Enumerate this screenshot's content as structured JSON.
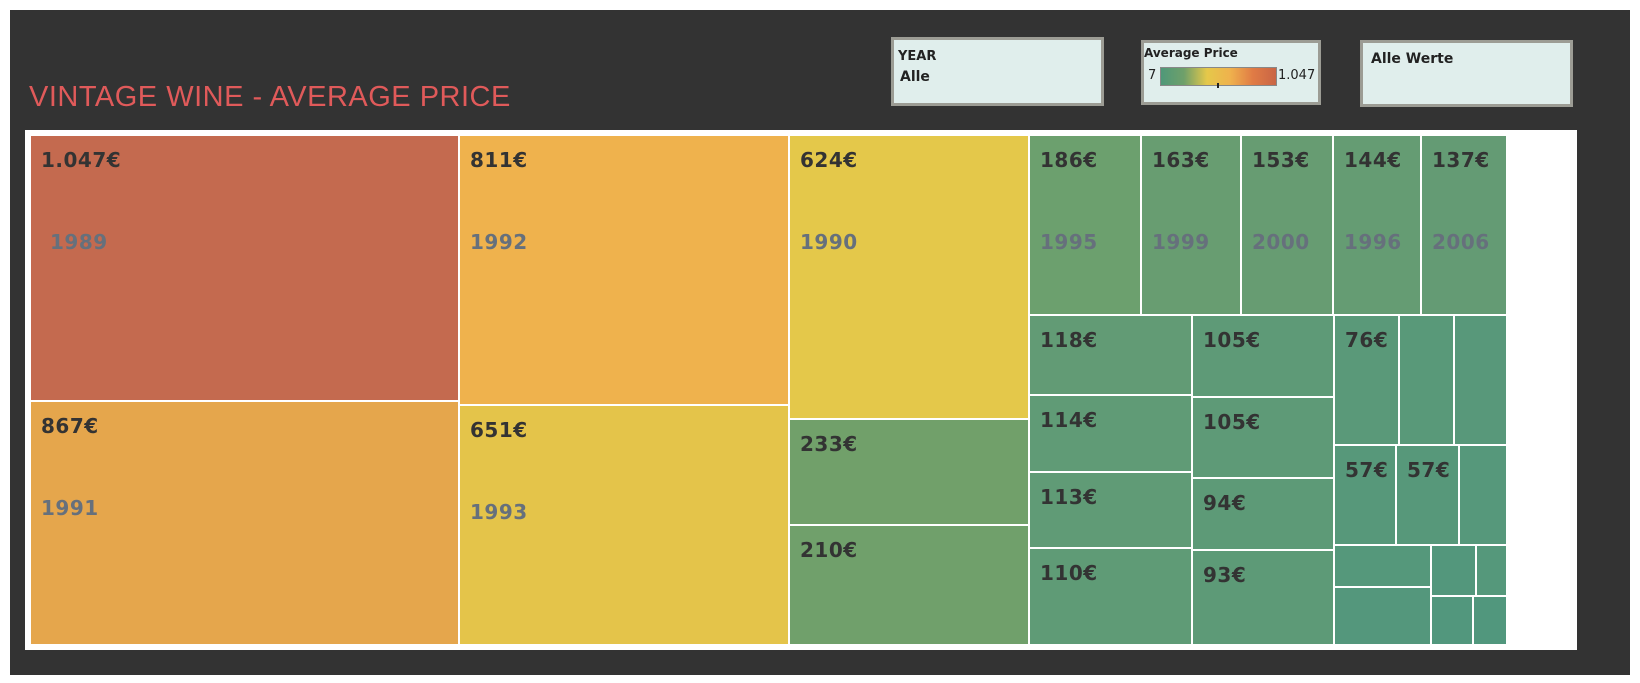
{
  "dashboard": {
    "title": "VINTAGE WINE - AVERAGE PRICE"
  },
  "filters": {
    "year": {
      "label": "YEAR",
      "value": "Alle"
    },
    "legend": {
      "label": "Average Price",
      "min": "7",
      "max": "1.047"
    },
    "values": {
      "label": "Alle Werte"
    }
  },
  "chart_data": {
    "type": "treemap",
    "measure": "Average Price",
    "color_scale": {
      "min": 7,
      "max": 1047,
      "colors": [
        "#4f9879",
        "#e5c84a",
        "#c96545"
      ]
    },
    "cells": [
      {
        "price": "1.047€",
        "year": "1989",
        "value": 1047,
        "color": "#c46a4f"
      },
      {
        "price": "867€",
        "year": "1991",
        "value": 867,
        "color": "#e5a64c"
      },
      {
        "price": "811€",
        "year": "1992",
        "value": 811,
        "color": "#efb24d"
      },
      {
        "price": "651€",
        "year": "1993",
        "value": 651,
        "color": "#e4c44a"
      },
      {
        "price": "624€",
        "year": "1990",
        "value": 624,
        "color": "#e4c84a"
      },
      {
        "price": "233€",
        "year": "",
        "value": 233,
        "color": "#71a06a"
      },
      {
        "price": "210€",
        "year": "",
        "value": 210,
        "color": "#70a06b"
      },
      {
        "price": "186€",
        "year": "1995",
        "value": 186,
        "color": "#6ca06e"
      },
      {
        "price": "163€",
        "year": "1999",
        "value": 163,
        "color": "#689d71"
      },
      {
        "price": "153€",
        "year": "2000",
        "value": 153,
        "color": "#679c72"
      },
      {
        "price": "144€",
        "year": "1996",
        "value": 144,
        "color": "#659c73"
      },
      {
        "price": "137€",
        "year": "2006",
        "value": 137,
        "color": "#649b74"
      },
      {
        "price": "118€",
        "year": "",
        "value": 118,
        "color": "#629b75"
      },
      {
        "price": "105€",
        "year": "",
        "value": 105,
        "color": "#5e9a77"
      },
      {
        "price": "114€",
        "year": "",
        "value": 114,
        "color": "#609b76"
      },
      {
        "price": "105€",
        "year": "",
        "value": 105,
        "color": "#5e9a77"
      },
      {
        "price": "113€",
        "year": "",
        "value": 113,
        "color": "#609b76"
      },
      {
        "price": "94€",
        "year": "",
        "value": 94,
        "color": "#5d9a77"
      },
      {
        "price": "110€",
        "year": "",
        "value": 110,
        "color": "#5f9b76"
      },
      {
        "price": "93€",
        "year": "",
        "value": 93,
        "color": "#5d9a77"
      },
      {
        "price": "76€",
        "year": "",
        "value": 76,
        "color": "#5a9979"
      },
      {
        "price": "",
        "year": "",
        "value": null,
        "color": "#599979"
      },
      {
        "price": "",
        "year": "",
        "value": null,
        "color": "#58987a"
      },
      {
        "price": "57€",
        "year": "",
        "value": 57,
        "color": "#57987a"
      },
      {
        "price": "57€",
        "year": "",
        "value": 57,
        "color": "#57987a"
      },
      {
        "price": "",
        "year": "",
        "value": null,
        "color": "#56987b"
      },
      {
        "price": "",
        "year": "",
        "value": null,
        "color": "#55987b"
      },
      {
        "price": "",
        "year": "",
        "value": null,
        "color": "#54977c"
      },
      {
        "price": "",
        "year": "",
        "value": null,
        "color": "#53977c"
      },
      {
        "price": "",
        "year": "",
        "value": null,
        "color": "#55987b"
      },
      {
        "price": "",
        "year": "",
        "value": null,
        "color": "#52977d"
      },
      {
        "price": "",
        "year": "",
        "value": null,
        "color": "#51977d"
      }
    ]
  }
}
